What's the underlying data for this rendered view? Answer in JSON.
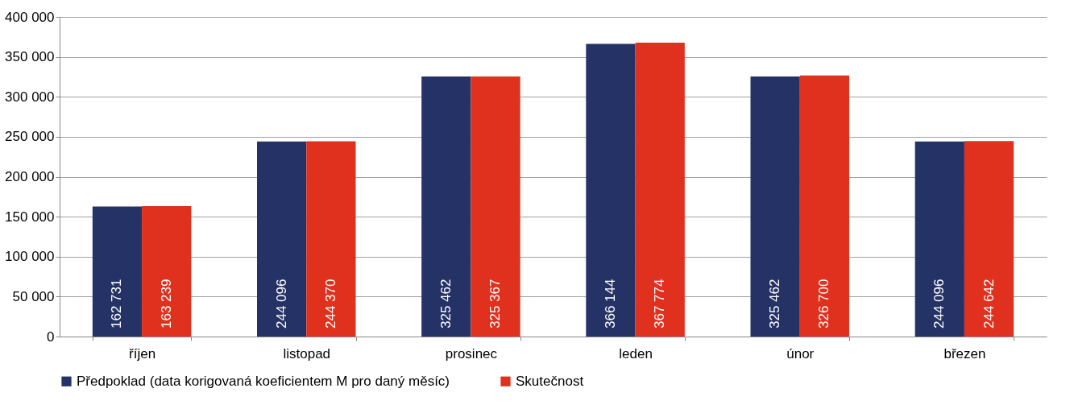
{
  "chart_data": {
    "type": "bar",
    "categories": [
      "říjen",
      "listopad",
      "prosinec",
      "leden",
      "únor",
      "březen"
    ],
    "series": [
      {
        "name": "Předpoklad (data korigovaná koeficientem M pro daný měsíc)",
        "color": "#253266",
        "values": [
          162731,
          244096,
          325462,
          366144,
          325462,
          244096
        ]
      },
      {
        "name": "Skutečnost",
        "color": "#e0301e",
        "values": [
          163239,
          244370,
          325367,
          367774,
          326700,
          244642
        ]
      }
    ],
    "ylim": [
      0,
      400000
    ],
    "yticks": [
      0,
      50000,
      100000,
      150000,
      200000,
      250000,
      300000,
      350000,
      400000
    ],
    "grid": "y",
    "legend": "bottom",
    "data_labels": true
  }
}
